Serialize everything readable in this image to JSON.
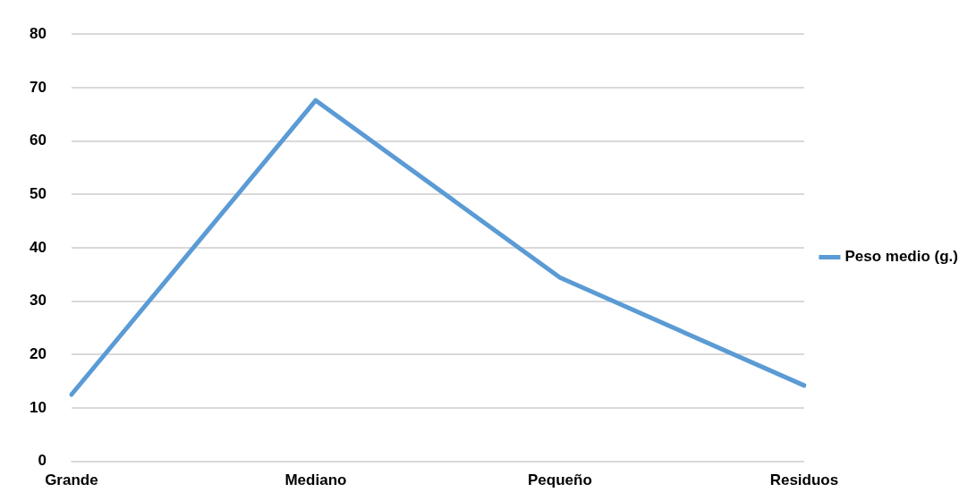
{
  "chart_data": {
    "type": "line",
    "categories": [
      "Grande",
      "Mediano",
      "Pequeño",
      "Residuos"
    ],
    "series": [
      {
        "name": "Peso medio (g.)",
        "color": "#5b9bd5",
        "values": [
          12.5,
          67.6,
          34.4,
          14.2
        ]
      }
    ],
    "ylim": [
      0,
      80
    ],
    "yticks": [
      0,
      10,
      20,
      30,
      40,
      50,
      60,
      70,
      80
    ],
    "grid": "y",
    "legend": "right",
    "marker": "none",
    "line_style": "solid"
  }
}
